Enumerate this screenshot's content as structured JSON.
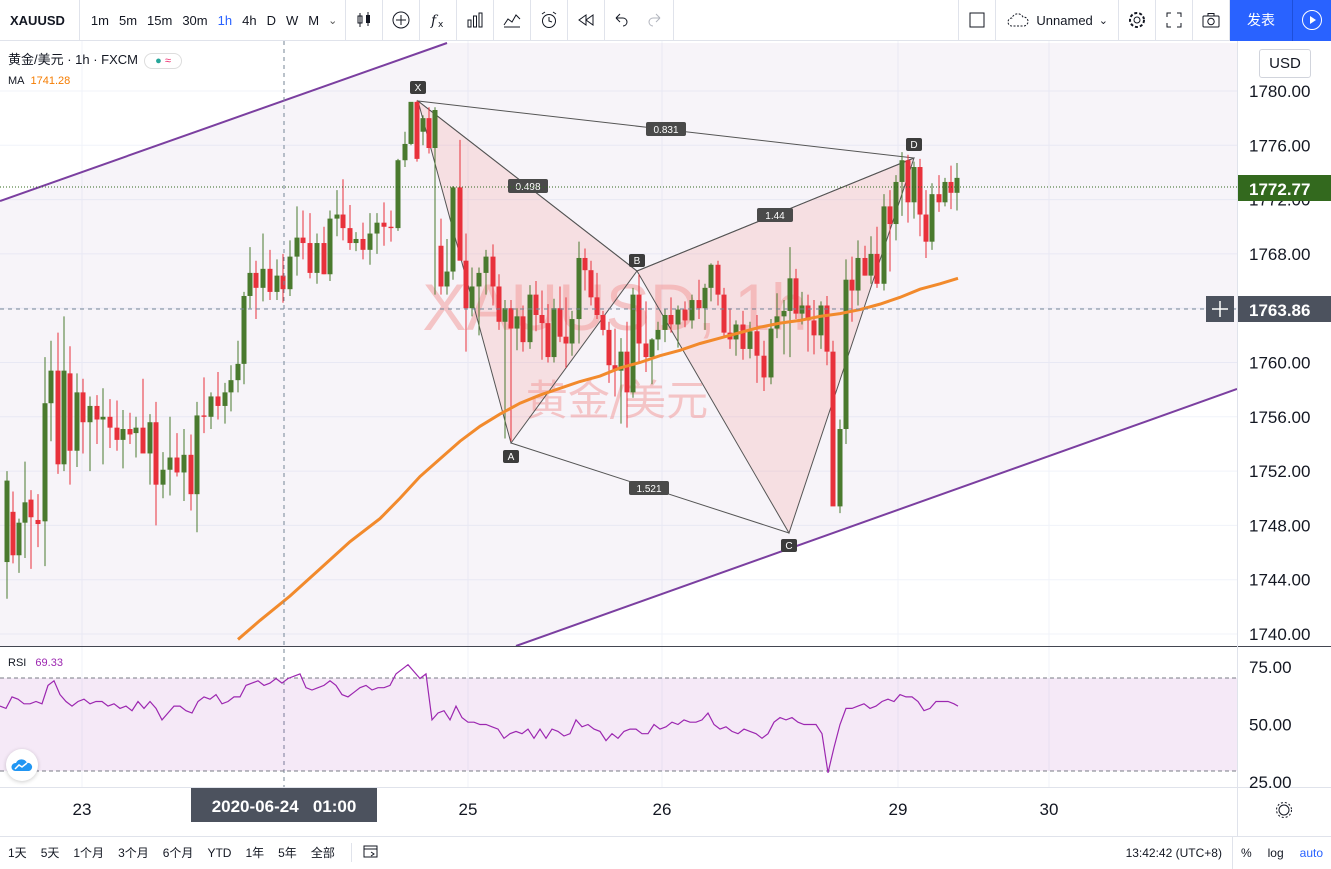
{
  "toolbar": {
    "symbol": "XAUUSD",
    "intervals": [
      "1m",
      "5m",
      "15m",
      "30m",
      "1h",
      "4h",
      "D",
      "W",
      "M"
    ],
    "active_interval": "1h",
    "layout_name": "Unnamed",
    "publish_label": "发表"
  },
  "legend": {
    "title": "黄金/美元 · 1h · FXCM",
    "ma_label": "MA",
    "ma_value": "1741.28",
    "rsi_label": "RSI",
    "rsi_value": "69.33"
  },
  "currency": "USD",
  "watermark": {
    "main": "XAUUSD, 1h",
    "sub": "黄金/美元"
  },
  "price_axis": {
    "ticks": [
      "1780.00",
      "1776.00",
      "1772.00",
      "1768.00",
      "1764.00",
      "1760.00",
      "1756.00",
      "1752.00",
      "1748.00",
      "1744.00",
      "1740.00"
    ],
    "last_price": "1772.77",
    "crosshair_price": "1763.86",
    "last_color": "#33691e"
  },
  "rsi_axis": {
    "ticks": [
      "75.00",
      "50.00",
      "25.00"
    ]
  },
  "time_axis": {
    "ticks": [
      "23",
      "25",
      "26",
      "29",
      "30"
    ],
    "crosshair_label": "2020-06-24   01:00"
  },
  "pattern": {
    "points": [
      "X",
      "A",
      "B",
      "C",
      "D"
    ],
    "ratios": {
      "xb": "0.498",
      "xd": "0.831",
      "bd": "1.44",
      "ac": "1.521"
    }
  },
  "bottombar": {
    "ranges": [
      "1天",
      "5天",
      "1个月",
      "3个月",
      "6个月",
      "YTD",
      "1年",
      "5年",
      "全部"
    ],
    "clock": "13:42:42 (UTC+8)",
    "options": [
      "%",
      "log",
      "auto"
    ]
  },
  "colors": {
    "up": "#4a7a2e",
    "down": "#e8313b",
    "ma": "#f28a2c",
    "channel": "#7b3fa0",
    "rsi": "#9c27b0",
    "accent": "#2962ff"
  }
}
